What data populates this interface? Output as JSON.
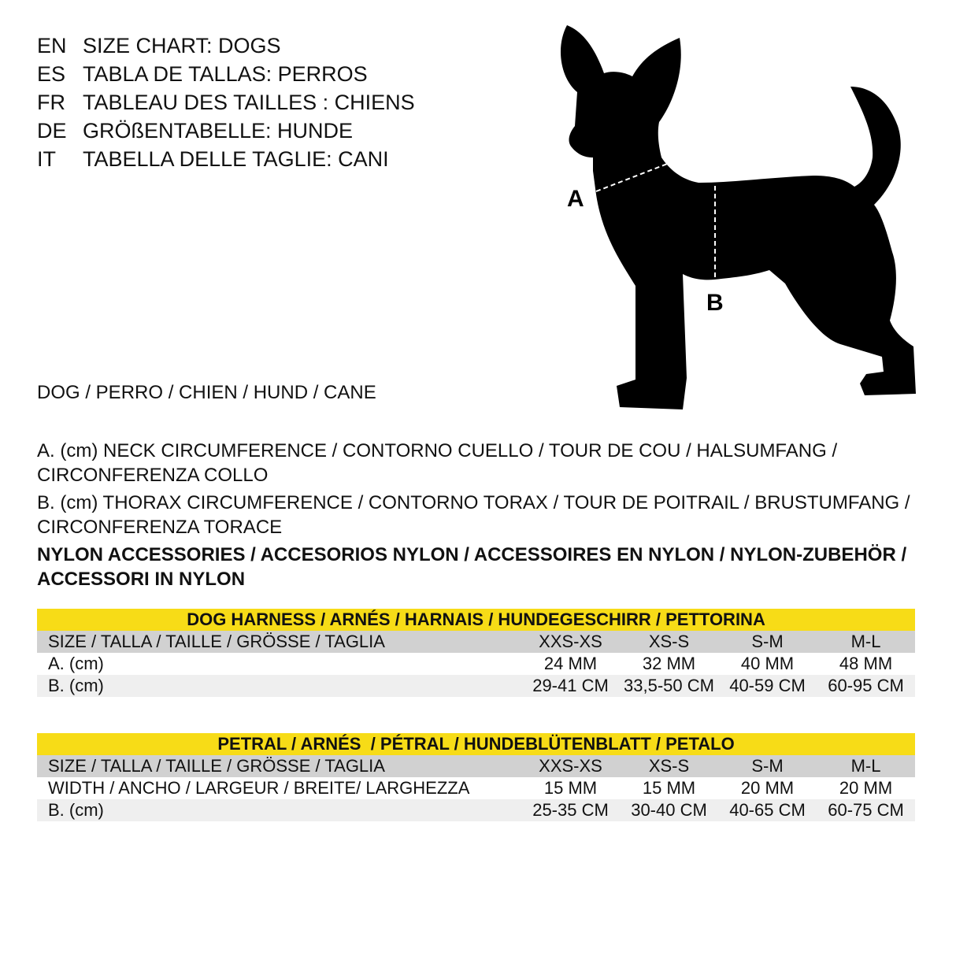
{
  "titles": [
    {
      "code": "EN",
      "text": "SIZE CHART: DOGS"
    },
    {
      "code": "ES",
      "text": "TABLA DE TALLAS: PERROS"
    },
    {
      "code": "FR",
      "text": "TABLEAU DES TAILLES : CHIENS"
    },
    {
      "code": "DE",
      "text": "GRÖßENTABELLE: HUNDE"
    },
    {
      "code": "IT",
      "text": "TABELLA DELLE TAGLIE: CANI"
    }
  ],
  "diagram": {
    "label_a": "A",
    "label_b": "B"
  },
  "animal": "DOG / PERRO / CHIEN / HUND / CANE",
  "legend_a": "A. (cm) NECK CIRCUMFERENCE / CONTORNO CUELLO / TOUR DE COU / HALSUMFANG / CIRCONFERENZA COLLO",
  "legend_b": "B. (cm) THORAX CIRCUMFERENCE / CONTORNO TORAX / TOUR DE POITRAIL / BRUSTUMFANG / CIRCONFERENZA TORACE",
  "material": "NYLON ACCESSORIES / ACCESORIOS NYLON / ACCESSOIRES EN NYLON / NYLON-ZUBEHÖR / ACCESSORI IN NYLON",
  "colors": {
    "header_yellow": "#f7dc17",
    "size_row_gray": "#d1d1d1",
    "alt_row_gray": "#efefef"
  },
  "tables": [
    {
      "title": "DOG HARNESS / ARNÉS / HARNAIS / HUNDEGESCHIRR / PETTORINA",
      "header": {
        "label": "SIZE / TALLA / TAILLE / GRÖSSE / TAGLIA",
        "sizes": [
          "XXS-XS",
          "XS-S",
          "S-M",
          "M-L"
        ]
      },
      "rows": [
        {
          "label": "A. (cm)",
          "values": [
            "24 MM",
            "32 MM",
            "40 MM",
            "48 MM"
          ]
        },
        {
          "label": "B. (cm)",
          "values": [
            "29-41 CM",
            "33,5-50 CM",
            "40-59 CM",
            "60-95 CM"
          ]
        }
      ]
    },
    {
      "title": "PETRAL / ARNÉS  / PÉTRAL / HUNDEBLÜTENBLATT / PETALO",
      "header": {
        "label": "SIZE / TALLA / TAILLE / GRÖSSE / TAGLIA",
        "sizes": [
          "XXS-XS",
          "XS-S",
          "S-M",
          "M-L"
        ]
      },
      "rows": [
        {
          "label": "WIDTH / ANCHO / LARGEUR / BREITE/ LARGHEZZA",
          "values": [
            "15 MM",
            "15 MM",
            "20 MM",
            "20 MM"
          ]
        },
        {
          "label": "B. (cm)",
          "values": [
            "25-35 CM",
            "30-40 CM",
            "40-65 CM",
            "60-75 CM"
          ]
        }
      ]
    }
  ]
}
